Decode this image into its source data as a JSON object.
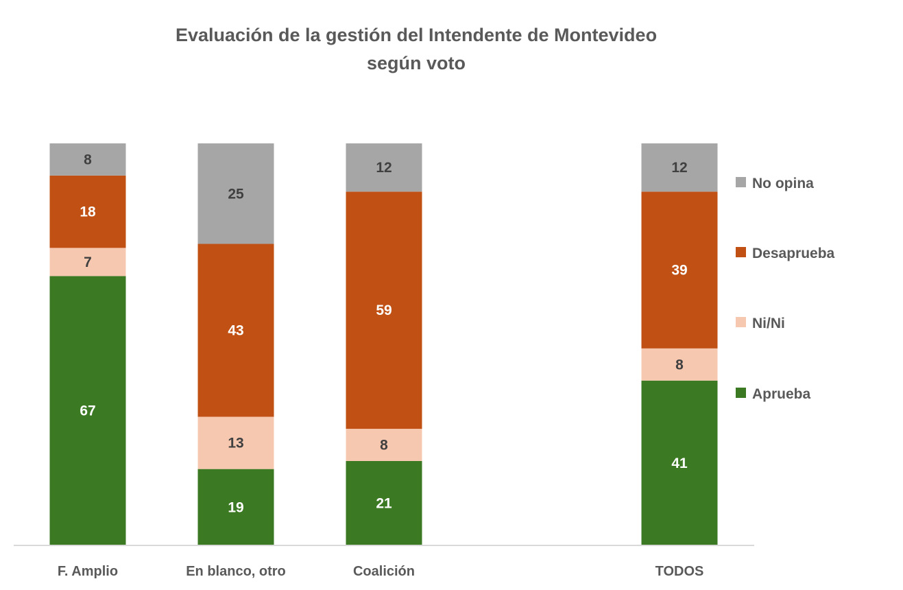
{
  "chart_data": {
    "type": "bar",
    "stacked": true,
    "title": "Evaluación de la gestión del Intendente de Montevideo",
    "subtitle": "según voto",
    "xlabel": "",
    "ylabel": "",
    "ylim": [
      0,
      100
    ],
    "grid": false,
    "legend_position": "right",
    "categories": [
      "F. Amplio",
      "En blanco, otro",
      "Coalición",
      "TODOS"
    ],
    "series": [
      {
        "name": "Aprueba",
        "color": "#3B7A23",
        "label_color": "#FFFFFF",
        "values": [
          67,
          19,
          21,
          41
        ]
      },
      {
        "name": "Ni/Ni",
        "color": "#F7C8B0",
        "label_color": "#404040",
        "values": [
          7,
          13,
          8,
          8
        ]
      },
      {
        "name": "Desaprueba",
        "color": "#C05014",
        "label_color": "#FFFFFF",
        "values": [
          18,
          43,
          59,
          39
        ]
      },
      {
        "name": "No opina",
        "color": "#A6A6A6",
        "label_color": "#404040",
        "values": [
          8,
          25,
          12,
          12
        ]
      }
    ],
    "legend_order": [
      "No opina",
      "Desaprueba",
      "Ni/Ni",
      "Aprueba"
    ]
  }
}
